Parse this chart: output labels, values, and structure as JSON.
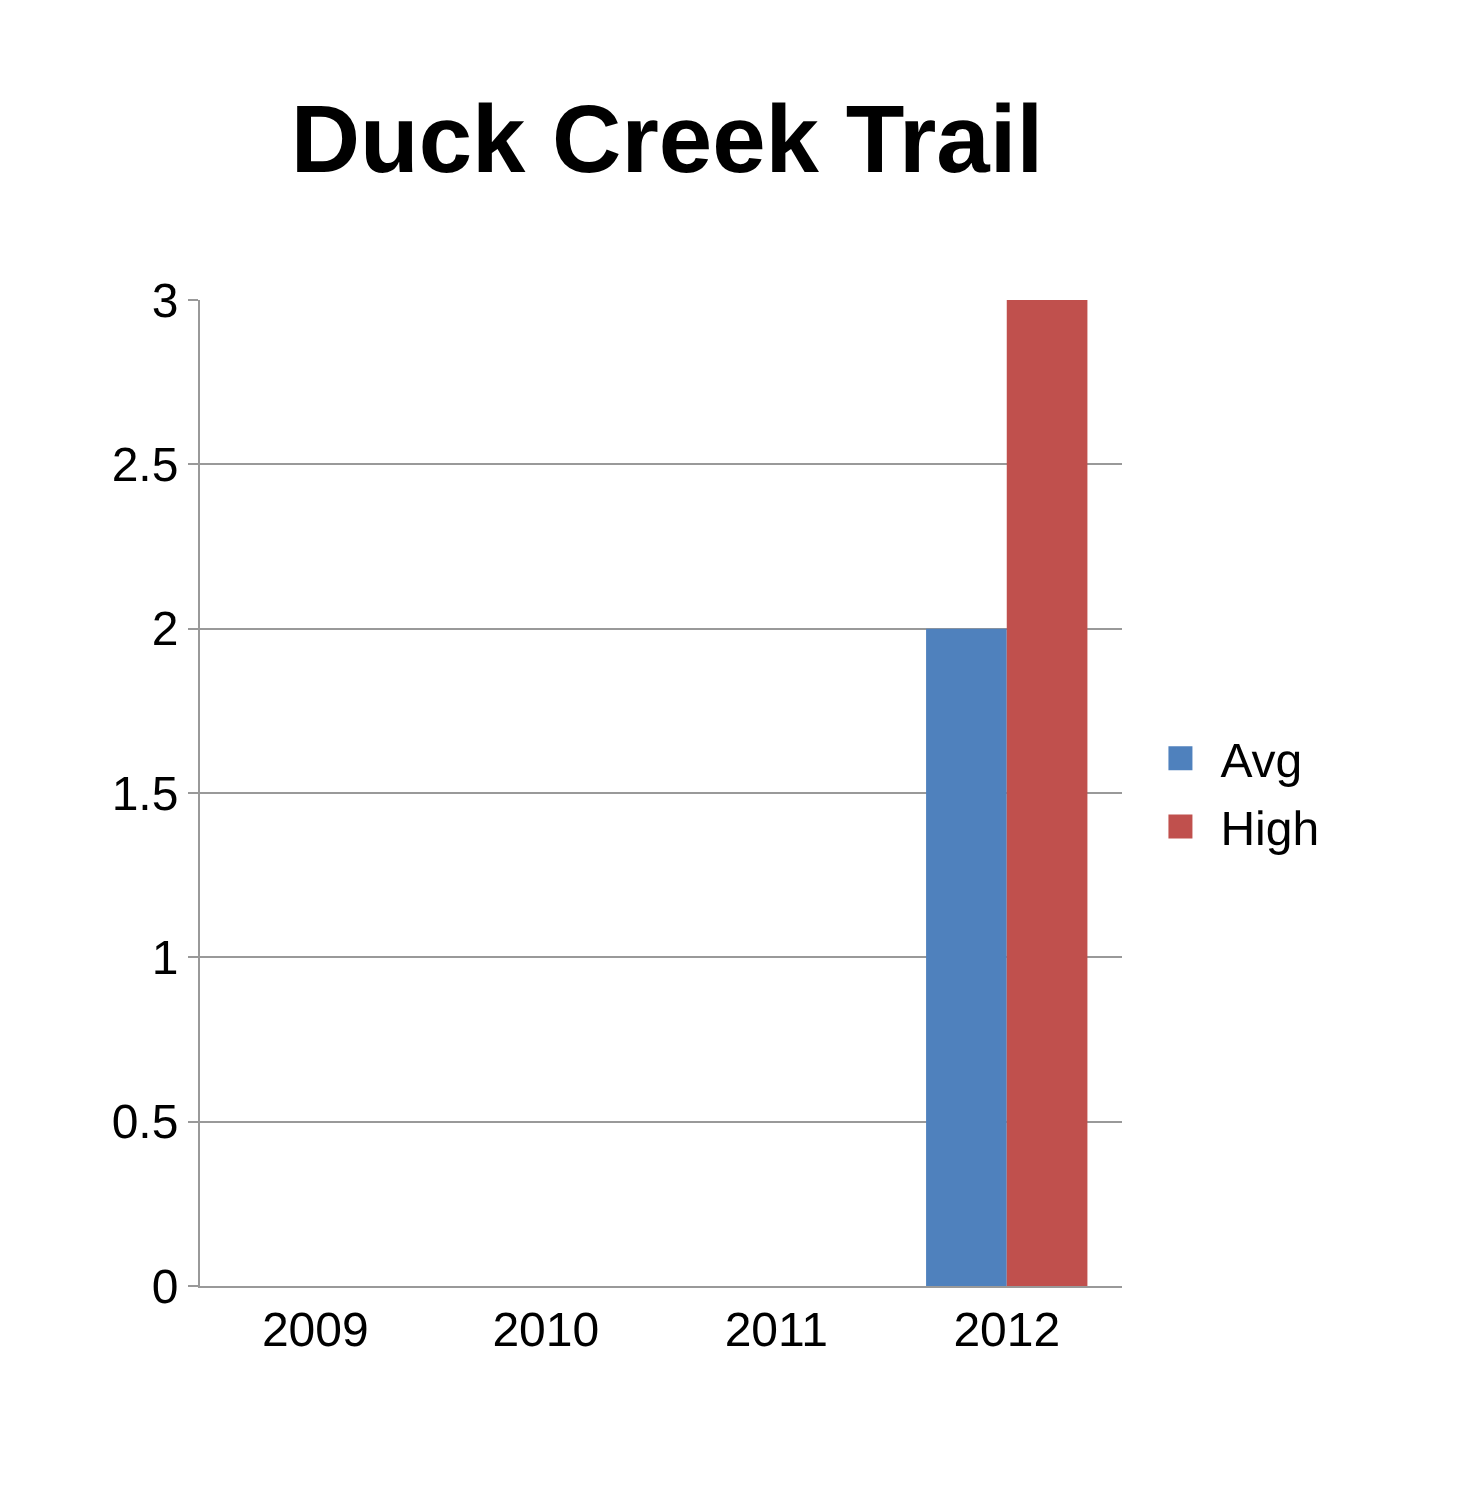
{
  "chart_data": {
    "type": "bar",
    "title": "Duck Creek Trail",
    "categories": [
      "2009",
      "2010",
      "2011",
      "2012"
    ],
    "series": [
      {
        "name": "Avg",
        "color": "#4f81bd",
        "values": [
          null,
          null,
          null,
          2
        ]
      },
      {
        "name": "High",
        "color": "#c0504d",
        "values": [
          null,
          null,
          null,
          3
        ]
      }
    ],
    "ylim": [
      0,
      3
    ],
    "yticks": [
      0,
      0.5,
      1,
      1.5,
      2,
      2.5,
      3
    ],
    "grid": "y",
    "legend": "right"
  }
}
